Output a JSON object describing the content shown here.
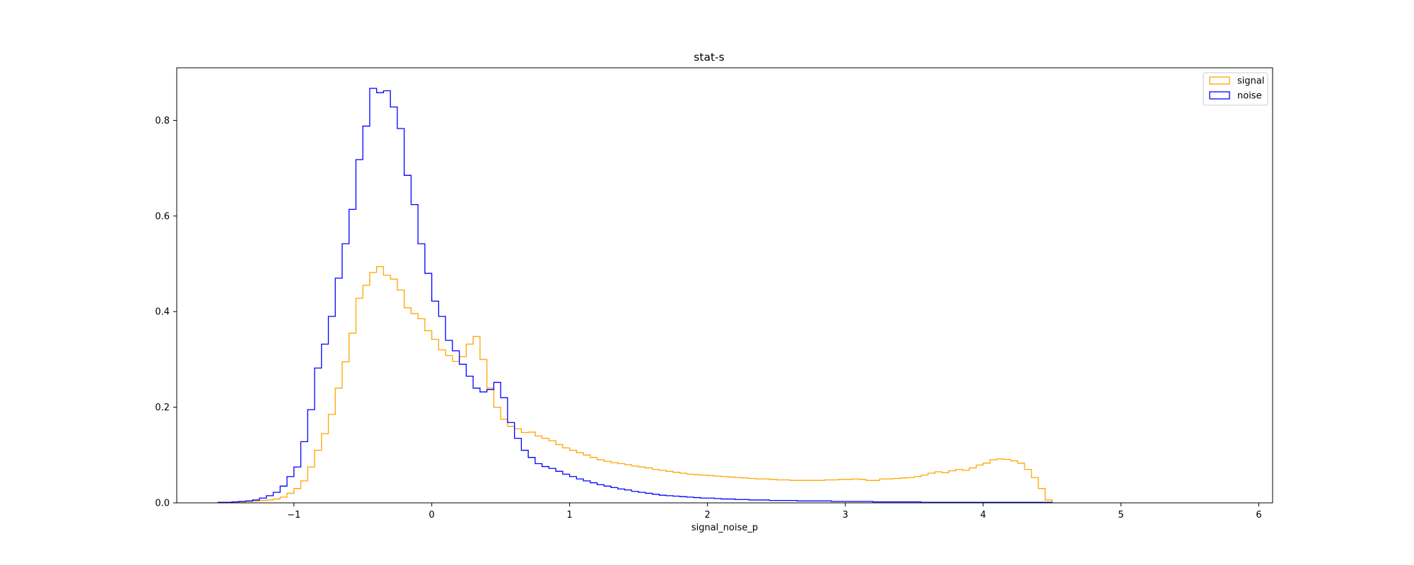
{
  "chart_data": {
    "type": "histogram-step",
    "title": "stat-s",
    "xlabel": "signal_noise_p",
    "ylabel": "",
    "xlim": [
      -1.85,
      6.1
    ],
    "ylim": [
      0,
      0.91
    ],
    "x_ticks": [
      -1,
      0,
      1,
      2,
      3,
      4,
      5,
      6
    ],
    "x_tick_labels": [
      "−1",
      "0",
      "1",
      "2",
      "3",
      "4",
      "5",
      "6"
    ],
    "y_ticks": [
      0.0,
      0.2,
      0.4,
      0.6,
      0.8
    ],
    "y_tick_labels": [
      "0.0",
      "0.2",
      "0.4",
      "0.6",
      "0.8"
    ],
    "grid": false,
    "legend_position": "top-right",
    "bin_start": -1.55,
    "bin_width": 0.05,
    "series": [
      {
        "name": "signal",
        "color": "#FFA500",
        "values": [
          0.001,
          0.001,
          0.002,
          0.002,
          0.003,
          0.004,
          0.005,
          0.006,
          0.008,
          0.012,
          0.02,
          0.03,
          0.046,
          0.075,
          0.11,
          0.145,
          0.185,
          0.24,
          0.295,
          0.355,
          0.428,
          0.455,
          0.482,
          0.494,
          0.476,
          0.468,
          0.445,
          0.408,
          0.396,
          0.385,
          0.36,
          0.342,
          0.32,
          0.308,
          0.296,
          0.306,
          0.332,
          0.348,
          0.3,
          0.24,
          0.2,
          0.175,
          0.16,
          0.155,
          0.147,
          0.148,
          0.14,
          0.135,
          0.13,
          0.122,
          0.115,
          0.11,
          0.105,
          0.1,
          0.095,
          0.09,
          0.087,
          0.084,
          0.082,
          0.08,
          0.077,
          0.075,
          0.073,
          0.07,
          0.068,
          0.066,
          0.064,
          0.062,
          0.06,
          0.059,
          0.058,
          0.057,
          0.056,
          0.055,
          0.054,
          0.053,
          0.052,
          0.051,
          0.05,
          0.05,
          0.049,
          0.048,
          0.048,
          0.047,
          0.047,
          0.047,
          0.047,
          0.047,
          0.048,
          0.048,
          0.049,
          0.049,
          0.05,
          0.049,
          0.047,
          0.047,
          0.05,
          0.05,
          0.051,
          0.052,
          0.053,
          0.055,
          0.058,
          0.062,
          0.065,
          0.063,
          0.067,
          0.07,
          0.068,
          0.073,
          0.079,
          0.083,
          0.09,
          0.092,
          0.091,
          0.088,
          0.083,
          0.07,
          0.053,
          0.03,
          0.006
        ]
      },
      {
        "name": "noise",
        "color": "#0000FF",
        "values": [
          0.001,
          0.001,
          0.002,
          0.003,
          0.004,
          0.006,
          0.01,
          0.015,
          0.022,
          0.035,
          0.055,
          0.075,
          0.128,
          0.195,
          0.282,
          0.332,
          0.39,
          0.47,
          0.542,
          0.614,
          0.718,
          0.788,
          0.867,
          0.858,
          0.862,
          0.828,
          0.783,
          0.685,
          0.624,
          0.542,
          0.48,
          0.422,
          0.39,
          0.34,
          0.318,
          0.29,
          0.265,
          0.24,
          0.232,
          0.237,
          0.252,
          0.22,
          0.168,
          0.135,
          0.11,
          0.095,
          0.082,
          0.076,
          0.072,
          0.066,
          0.06,
          0.055,
          0.05,
          0.046,
          0.042,
          0.038,
          0.035,
          0.032,
          0.029,
          0.027,
          0.024,
          0.022,
          0.02,
          0.018,
          0.016,
          0.015,
          0.014,
          0.013,
          0.012,
          0.011,
          0.01,
          0.01,
          0.009,
          0.008,
          0.008,
          0.007,
          0.007,
          0.006,
          0.006,
          0.006,
          0.005,
          0.005,
          0.005,
          0.005,
          0.004,
          0.004,
          0.004,
          0.004,
          0.004,
          0.003,
          0.003,
          0.003,
          0.003,
          0.003,
          0.003,
          0.002,
          0.002,
          0.002,
          0.002,
          0.002,
          0.002,
          0.002,
          0.001,
          0.001,
          0.001,
          0.001,
          0.001,
          0.001,
          0.001,
          0.001,
          0.001,
          0.001,
          0.001,
          0.001,
          0.001,
          0.001,
          0.001,
          0.001,
          0.001,
          0.001,
          0.001
        ]
      }
    ]
  }
}
